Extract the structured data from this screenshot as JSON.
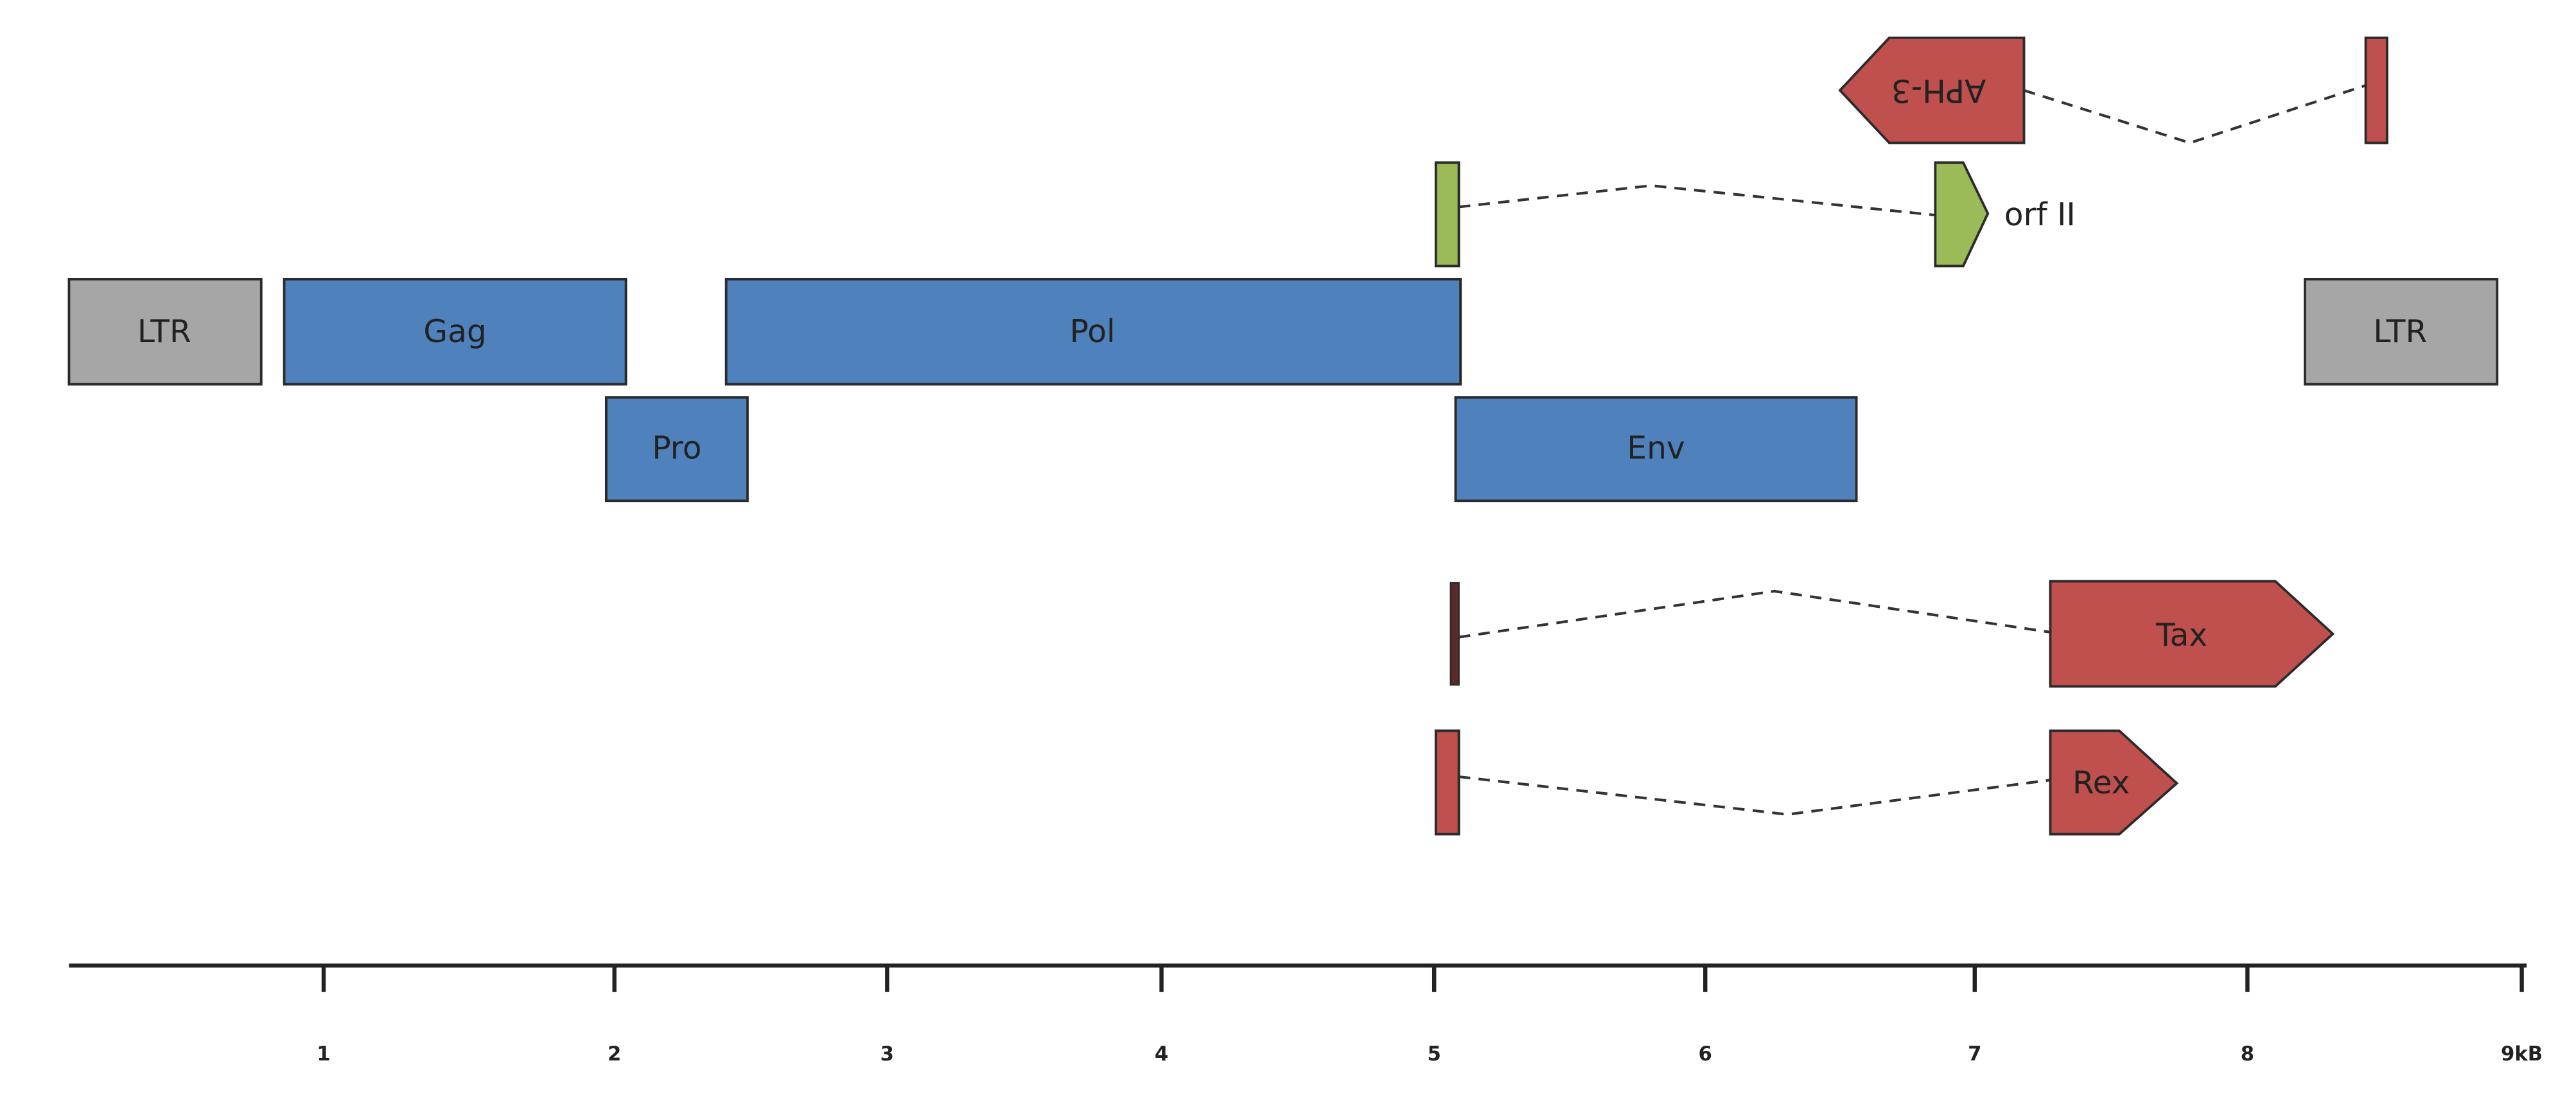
{
  "features": [
    "LTR",
    "Gag",
    "Pol",
    "Pro",
    "Env",
    "LTR",
    "orf II",
    "APH-3",
    "Tax",
    "Rex"
  ],
  "axis": {
    "labels": [
      "1",
      "2",
      "3",
      "4",
      "5",
      "6",
      "7",
      "8",
      "9kB"
    ]
  }
}
